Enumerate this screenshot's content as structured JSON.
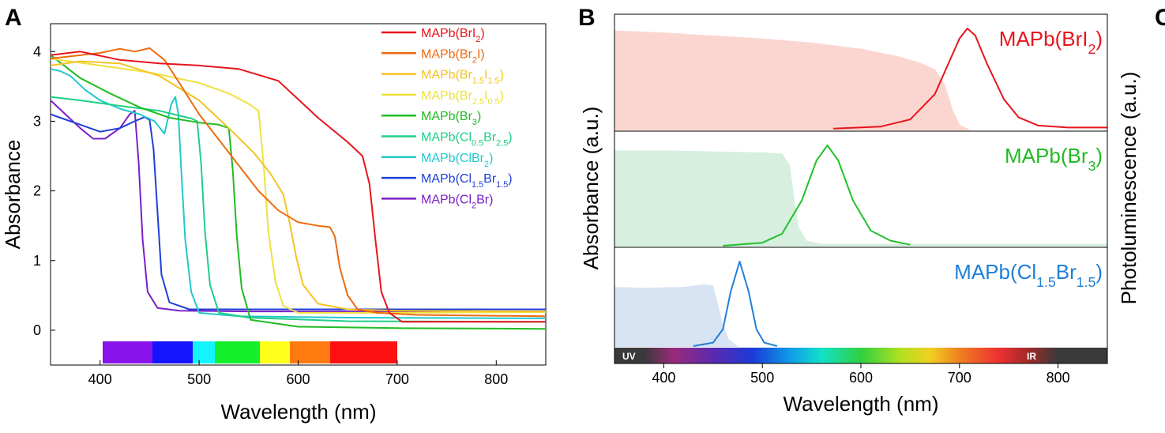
{
  "panels": {
    "a": "A",
    "b": "B",
    "c": "C"
  },
  "colors": {
    "MAPb(BrI2)": "#e8141c",
    "MAPb(Br2I)": "#ee6a10",
    "MAPb(Br1.5I1.5)": "#f4c324",
    "MAPb(Br2.5I0.5)": "#f0e040",
    "MAPb(Br3)": "#22bb22",
    "MAPb(Cl0.5Br2.5)": "#1ecf86",
    "MAPb(ClBr2)": "#22c8cc",
    "MAPb(Cl1.5Br1.5)": "#1f3fd8",
    "MAPb(Cl2Br)": "#7a1fc8",
    "fill_red": "#fbd6d0",
    "fill_green": "#d6efdf",
    "fill_blue": "#d8e3f4"
  },
  "chart_data": [
    {
      "type": "line",
      "panel": "A",
      "xlabel": "Wavelength (nm)",
      "ylabel": "Absorbance",
      "xlim": [
        350,
        850
      ],
      "ylim": [
        -0.5,
        4.4
      ],
      "xticks": [
        400,
        500,
        600,
        700,
        800
      ],
      "yticks": [
        0,
        1,
        2,
        3,
        4
      ],
      "legend_position": "top-right",
      "legend": [
        {
          "key": "MAPb(BrI2)",
          "pre": "MAPb(BrI",
          "sub": "2",
          "post": ")"
        },
        {
          "key": "MAPb(Br2I)",
          "pre": "MAPb(Br",
          "sub": "2",
          "post": "I)"
        },
        {
          "key": "MAPb(Br1.5I1.5)",
          "pre": "MAPb(Br",
          "sub": "1.5",
          "mid": "I",
          "sub2": "1.5",
          "post": ")"
        },
        {
          "key": "MAPb(Br2.5I0.5)",
          "pre": "MAPb(Br",
          "sub": "2.5",
          "mid": "I",
          "sub2": "0.5",
          "post": ")"
        },
        {
          "key": "MAPb(Br3)",
          "pre": "MAPb(Br",
          "sub": "3",
          "post": ")"
        },
        {
          "key": "MAPb(Cl0.5Br2.5)",
          "pre": "MAPb(Cl",
          "sub": "0.5",
          "mid": "Br",
          "sub2": "2.5",
          "post": ")"
        },
        {
          "key": "MAPb(ClBr2)",
          "pre": "MAPb(ClBr",
          "sub": "2",
          "post": ")"
        },
        {
          "key": "MAPb(Cl1.5Br1.5)",
          "pre": "MAPb(Cl",
          "sub": "1.5",
          "mid": "Br",
          "sub2": "1.5",
          "post": ")"
        },
        {
          "key": "MAPb(Cl2Br)",
          "pre": "MAPb(Cl",
          "sub": "2",
          "post": "Br)"
        }
      ],
      "series": [
        {
          "key": "MAPb(BrI2)",
          "points": [
            [
              350,
              3.95
            ],
            [
              380,
              4.0
            ],
            [
              420,
              3.88
            ],
            [
              460,
              3.83
            ],
            [
              500,
              3.8
            ],
            [
              540,
              3.75
            ],
            [
              580,
              3.58
            ],
            [
              620,
              3.05
            ],
            [
              650,
              2.7
            ],
            [
              665,
              2.5
            ],
            [
              672,
              2.1
            ],
            [
              678,
              1.3
            ],
            [
              684,
              0.55
            ],
            [
              692,
              0.25
            ],
            [
              705,
              0.12
            ],
            [
              750,
              0.12
            ],
            [
              850,
              0.12
            ]
          ]
        },
        {
          "key": "MAPb(Br2I)",
          "points": [
            [
              350,
              3.9
            ],
            [
              400,
              3.98
            ],
            [
              420,
              4.04
            ],
            [
              435,
              4.0
            ],
            [
              450,
              4.05
            ],
            [
              465,
              3.88
            ],
            [
              480,
              3.55
            ],
            [
              500,
              3.1
            ],
            [
              530,
              2.55
            ],
            [
              560,
              2.0
            ],
            [
              580,
              1.72
            ],
            [
              600,
              1.55
            ],
            [
              620,
              1.5
            ],
            [
              632,
              1.48
            ],
            [
              637,
              1.35
            ],
            [
              642,
              0.9
            ],
            [
              650,
              0.5
            ],
            [
              660,
              0.3
            ],
            [
              680,
              0.25
            ],
            [
              720,
              0.22
            ],
            [
              850,
              0.2
            ]
          ]
        },
        {
          "key": "MAPb(Br1.5I1.5)",
          "points": [
            [
              350,
              3.8
            ],
            [
              380,
              3.86
            ],
            [
              420,
              3.83
            ],
            [
              460,
              3.65
            ],
            [
              500,
              3.3
            ],
            [
              530,
              2.9
            ],
            [
              555,
              2.55
            ],
            [
              572,
              2.25
            ],
            [
              585,
              1.95
            ],
            [
              592,
              1.5
            ],
            [
              598,
              1.05
            ],
            [
              605,
              0.65
            ],
            [
              620,
              0.38
            ],
            [
              650,
              0.3
            ],
            [
              700,
              0.28
            ],
            [
              850,
              0.27
            ]
          ]
        },
        {
          "key": "MAPb(Br2.5I0.5)",
          "points": [
            [
              350,
              3.9
            ],
            [
              400,
              3.8
            ],
            [
              450,
              3.7
            ],
            [
              500,
              3.55
            ],
            [
              530,
              3.4
            ],
            [
              550,
              3.25
            ],
            [
              560,
              3.15
            ],
            [
              565,
              2.4
            ],
            [
              570,
              1.4
            ],
            [
              577,
              0.7
            ],
            [
              585,
              0.35
            ],
            [
              600,
              0.25
            ],
            [
              700,
              0.25
            ],
            [
              850,
              0.26
            ]
          ]
        },
        {
          "key": "MAPb(Br3)",
          "points": [
            [
              350,
              3.95
            ],
            [
              380,
              3.62
            ],
            [
              410,
              3.4
            ],
            [
              440,
              3.2
            ],
            [
              470,
              3.05
            ],
            [
              500,
              2.98
            ],
            [
              520,
              2.95
            ],
            [
              530,
              2.9
            ],
            [
              534,
              2.3
            ],
            [
              538,
              1.35
            ],
            [
              543,
              0.6
            ],
            [
              552,
              0.15
            ],
            [
              600,
              0.05
            ],
            [
              700,
              0.03
            ],
            [
              850,
              0.02
            ]
          ]
        },
        {
          "key": "MAPb(Cl0.5Br2.5)",
          "points": [
            [
              350,
              3.35
            ],
            [
              380,
              3.3
            ],
            [
              420,
              3.22
            ],
            [
              460,
              3.15
            ],
            [
              480,
              3.08
            ],
            [
              492,
              3.04
            ],
            [
              498,
              3.0
            ],
            [
              502,
              2.4
            ],
            [
              506,
              1.4
            ],
            [
              511,
              0.65
            ],
            [
              520,
              0.25
            ],
            [
              550,
              0.18
            ],
            [
              650,
              0.13
            ],
            [
              850,
              0.12
            ]
          ]
        },
        {
          "key": "MAPb(ClBr2)",
          "points": [
            [
              350,
              3.75
            ],
            [
              360,
              3.72
            ],
            [
              370,
              3.65
            ],
            [
              385,
              3.45
            ],
            [
              400,
              3.3
            ],
            [
              420,
              3.18
            ],
            [
              440,
              3.1
            ],
            [
              455,
              3.0
            ],
            [
              465,
              2.82
            ],
            [
              472,
              3.25
            ],
            [
              476,
              3.35
            ],
            [
              479,
              3.1
            ],
            [
              482,
              2.3
            ],
            [
              486,
              1.3
            ],
            [
              492,
              0.55
            ],
            [
              500,
              0.25
            ],
            [
              540,
              0.2
            ],
            [
              650,
              0.18
            ],
            [
              850,
              0.17
            ]
          ]
        },
        {
          "key": "MAPb(Cl1.5Br1.5)",
          "points": [
            [
              350,
              3.1
            ],
            [
              360,
              3.05
            ],
            [
              380,
              2.95
            ],
            [
              400,
              2.85
            ],
            [
              420,
              2.9
            ],
            [
              435,
              3.0
            ],
            [
              445,
              3.06
            ],
            [
              450,
              3.02
            ],
            [
              454,
              2.6
            ],
            [
              458,
              1.7
            ],
            [
              462,
              0.8
            ],
            [
              470,
              0.4
            ],
            [
              490,
              0.3
            ],
            [
              550,
              0.3
            ],
            [
              700,
              0.3
            ],
            [
              850,
              0.3
            ]
          ]
        },
        {
          "key": "MAPb(Cl2Br)",
          "points": [
            [
              350,
              3.3
            ],
            [
              365,
              3.1
            ],
            [
              380,
              2.9
            ],
            [
              393,
              2.75
            ],
            [
              405,
              2.75
            ],
            [
              420,
              2.9
            ],
            [
              430,
              3.1
            ],
            [
              435,
              3.15
            ],
            [
              439,
              2.4
            ],
            [
              443,
              1.3
            ],
            [
              448,
              0.55
            ],
            [
              458,
              0.32
            ],
            [
              480,
              0.28
            ],
            [
              550,
              0.27
            ],
            [
              850,
              0.27
            ]
          ]
        }
      ]
    },
    {
      "type": "area",
      "panel": "B",
      "xlabel": "Wavelength (nm)",
      "ylabel_left": "Absorbance (a.u.)",
      "ylabel_right": "Photoluminescence (a.u.)",
      "xlim": [
        350,
        850
      ],
      "xticks": [
        400,
        500,
        600,
        700,
        800
      ],
      "spectrum_labels": {
        "uv": "UV",
        "ir": "IR"
      },
      "subplots": [
        {
          "key": "MAPb(BrI2)",
          "label_pre": "MAPb(BrI",
          "label_sub": "2",
          "label_post": ")",
          "label_color": "#e8141c",
          "absorbance": [
            [
              350,
              0.98
            ],
            [
              400,
              0.96
            ],
            [
              450,
              0.93
            ],
            [
              500,
              0.9
            ],
            [
              550,
              0.86
            ],
            [
              600,
              0.8
            ],
            [
              640,
              0.72
            ],
            [
              660,
              0.66
            ],
            [
              675,
              0.6
            ],
            [
              685,
              0.45
            ],
            [
              693,
              0.2
            ],
            [
              700,
              0.05
            ],
            [
              710,
              0.0
            ]
          ],
          "pl": [
            [
              572,
              0.01
            ],
            [
              620,
              0.03
            ],
            [
              650,
              0.1
            ],
            [
              675,
              0.35
            ],
            [
              690,
              0.68
            ],
            [
              700,
              0.9
            ],
            [
              708,
              1.0
            ],
            [
              716,
              0.93
            ],
            [
              728,
              0.65
            ],
            [
              745,
              0.3
            ],
            [
              760,
              0.12
            ],
            [
              780,
              0.04
            ],
            [
              810,
              0.02
            ],
            [
              850,
              0.02
            ]
          ]
        },
        {
          "key": "MAPb(Br3)",
          "label_pre": "MAPb(Br",
          "label_sub": "3",
          "label_post": ")",
          "label_color": "#22bb22",
          "absorbance": [
            [
              350,
              0.95
            ],
            [
              400,
              0.95
            ],
            [
              450,
              0.94
            ],
            [
              500,
              0.93
            ],
            [
              520,
              0.92
            ],
            [
              528,
              0.8
            ],
            [
              532,
              0.5
            ],
            [
              537,
              0.18
            ],
            [
              545,
              0.05
            ],
            [
              560,
              0.02
            ],
            [
              850,
              0.02
            ]
          ],
          "pl": [
            [
              460,
              0.0
            ],
            [
              500,
              0.03
            ],
            [
              520,
              0.12
            ],
            [
              540,
              0.45
            ],
            [
              555,
              0.85
            ],
            [
              566,
              1.0
            ],
            [
              577,
              0.85
            ],
            [
              592,
              0.45
            ],
            [
              610,
              0.15
            ],
            [
              630,
              0.05
            ],
            [
              650,
              0.01
            ]
          ]
        },
        {
          "key": "MAPb(Cl1.5Br1.5)",
          "label_pre": "MAPb(Cl",
          "label_sub": "1.5",
          "label_mid": "Br",
          "label_sub2": "1.5",
          "label_post": ")",
          "label_color": "#1f7fd8",
          "absorbance": [
            [
              350,
              0.7
            ],
            [
              380,
              0.69
            ],
            [
              420,
              0.7
            ],
            [
              440,
              0.73
            ],
            [
              450,
              0.72
            ],
            [
              455,
              0.5
            ],
            [
              460,
              0.25
            ],
            [
              466,
              0.08
            ],
            [
              475,
              0.0
            ]
          ],
          "pl": [
            [
              430,
              0.0
            ],
            [
              450,
              0.04
            ],
            [
              460,
              0.2
            ],
            [
              468,
              0.65
            ],
            [
              477,
              1.0
            ],
            [
              486,
              0.65
            ],
            [
              494,
              0.2
            ],
            [
              502,
              0.04
            ],
            [
              515,
              0.0
            ]
          ]
        }
      ]
    }
  ]
}
